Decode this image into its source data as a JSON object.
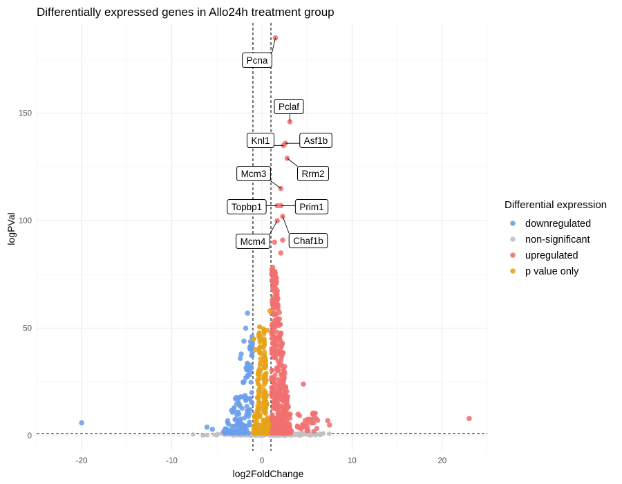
{
  "chart_data": {
    "type": "scatter",
    "title": "Differentially expressed genes in Allo24h treatment group",
    "xlabel": "log2FoldChange",
    "ylabel": "logPVal",
    "xlim": [
      -25,
      25
    ],
    "ylim": [
      -7,
      192
    ],
    "x_ticks": [
      -20,
      -10,
      0,
      10,
      20
    ],
    "y_ticks": [
      0,
      50,
      100,
      150
    ],
    "grid": true,
    "thresholds": {
      "log2fc": [
        -1,
        1
      ],
      "logp": 1
    },
    "legend": {
      "title": "Differential expression",
      "position": "right",
      "entries": [
        {
          "name": "downregulated",
          "color": "#6b9eea"
        },
        {
          "name": "non-significant",
          "color": "#c0c0c0"
        },
        {
          "name": "upregulated",
          "color": "#f07070"
        },
        {
          "name": "p value only",
          "color": "#e6a317"
        }
      ]
    },
    "labeled_genes": [
      {
        "gene": "Pcna",
        "x": 1.5,
        "y": 185
      },
      {
        "gene": "Pclaf",
        "x": 3.1,
        "y": 146
      },
      {
        "gene": "Knl1",
        "x": 2.4,
        "y": 135
      },
      {
        "gene": "Asf1b",
        "x": 2.6,
        "y": 136
      },
      {
        "gene": "Rrm2",
        "x": 2.8,
        "y": 129
      },
      {
        "gene": "Mcm3",
        "x": 2.1,
        "y": 115
      },
      {
        "gene": "Topbp1",
        "x": 1.7,
        "y": 107
      },
      {
        "gene": "Prim1",
        "x": 2.1,
        "y": 107
      },
      {
        "gene": "Mcm4",
        "x": 1.7,
        "y": 100
      },
      {
        "gene": "Chaf1b",
        "x": 2.3,
        "y": 102
      }
    ],
    "other_points": [
      {
        "category": "downregulated",
        "x": -20,
        "y": 6
      },
      {
        "category": "upregulated",
        "x": 23,
        "y": 8
      },
      {
        "category": "upregulated",
        "x": 4.6,
        "y": 24
      },
      {
        "category": "upregulated",
        "x": 7.5,
        "y": 5
      },
      {
        "category": "upregulated",
        "x": 7.3,
        "y": 7
      },
      {
        "category": "upregulated",
        "x": 5.8,
        "y": 9
      },
      {
        "category": "upregulated",
        "x": 5.5,
        "y": 6
      },
      {
        "category": "upregulated",
        "x": 4.0,
        "y": 10
      },
      {
        "category": "upregulated",
        "x": 2.3,
        "y": 91
      },
      {
        "category": "upregulated",
        "x": 1.4,
        "y": 90
      },
      {
        "category": "upregulated",
        "x": 2.1,
        "y": 85
      },
      {
        "category": "downregulated",
        "x": -1.6,
        "y": 57
      },
      {
        "category": "downregulated",
        "x": -1.8,
        "y": 50
      },
      {
        "category": "downregulated",
        "x": -2.0,
        "y": 44
      },
      {
        "category": "downregulated",
        "x": -2.3,
        "y": 38
      },
      {
        "category": "downregulated",
        "x": -2.4,
        "y": 36
      },
      {
        "category": "downregulated",
        "x": -6.1,
        "y": 4
      },
      {
        "category": "downregulated",
        "x": -5.5,
        "y": 3
      },
      {
        "category": "p value only",
        "x": -0.9,
        "y": 45
      },
      {
        "category": "p value only",
        "x": 0.9,
        "y": 58
      },
      {
        "category": "p value only",
        "x": 0.6,
        "y": 49
      },
      {
        "category": "p value only",
        "x": -0.7,
        "y": 40
      }
    ]
  }
}
